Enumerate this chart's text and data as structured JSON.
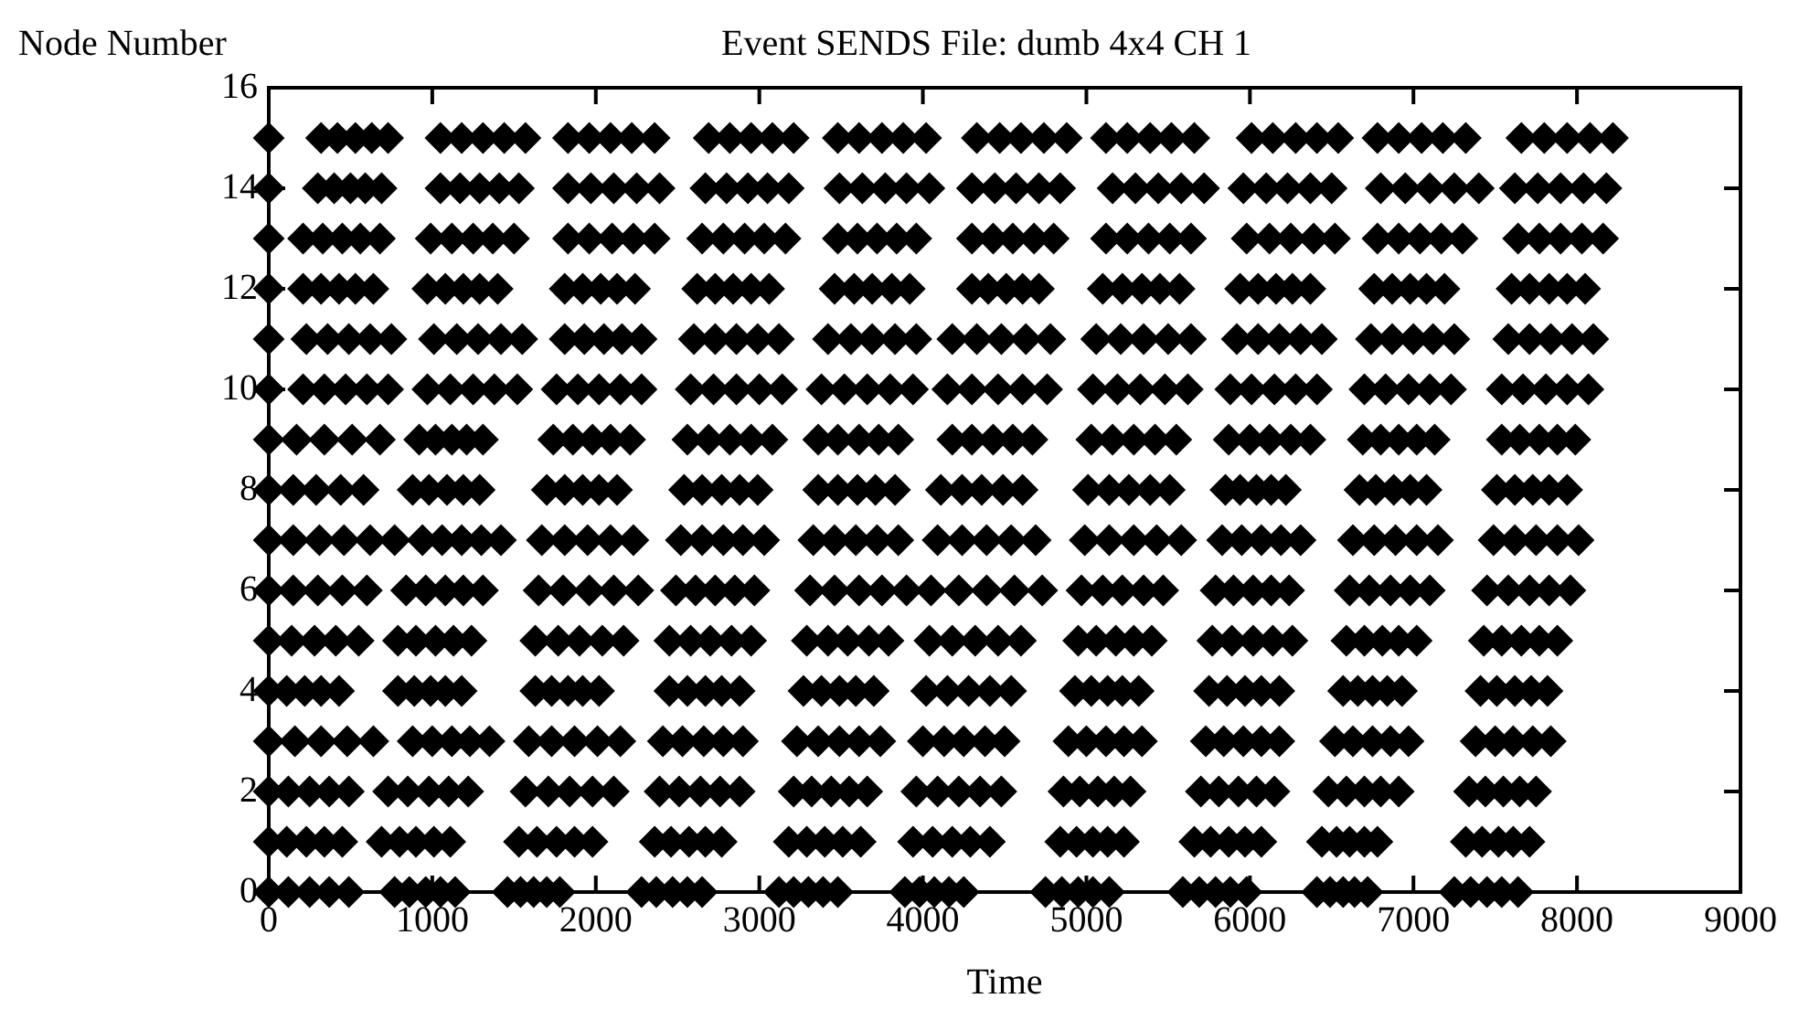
{
  "chart_data": {
    "type": "scatter",
    "title": "Event SENDS File: dumb 4x4 CH 1",
    "xlabel": "Time",
    "ylabel": "Node Number",
    "xlim": [
      0,
      9000
    ],
    "xticks": [
      0,
      1000,
      2000,
      3000,
      4000,
      5000,
      6000,
      7000,
      8000,
      9000
    ],
    "ylim": [
      0,
      16
    ],
    "yticks": [
      0,
      2,
      4,
      6,
      8,
      10,
      12,
      14,
      16
    ],
    "marker": "diamond",
    "series": [
      {
        "color": "#000000",
        "x": [
          0,
          320,
          420,
          530,
          630,
          730,
          1050,
          1180,
          1310,
          1440,
          1570,
          1830,
          1960,
          2090,
          2220,
          2360,
          2690,
          2820,
          2950,
          3080,
          3210,
          3480,
          3610,
          3750,
          3880,
          4020,
          4330,
          4470,
          4600,
          4740,
          4880,
          5120,
          5250,
          5390,
          5520,
          5660,
          6010,
          6140,
          6280,
          6410,
          6540,
          6780,
          6910,
          7050,
          7180,
          7320,
          7660,
          7800,
          7940,
          8080,
          8220
        ],
        "values": [
          15,
          15,
          15,
          15,
          15,
          15,
          15,
          15,
          15,
          15,
          15,
          15,
          15,
          15,
          15,
          15,
          15,
          15,
          15,
          15,
          15,
          15,
          15,
          15,
          15,
          15,
          15,
          15,
          15,
          15,
          15,
          15,
          15,
          15,
          15,
          15,
          15,
          15,
          15,
          15,
          15,
          15,
          15,
          15,
          15,
          15,
          15,
          15,
          15,
          15,
          15
        ]
      },
      {
        "color": "#000000",
        "x": [
          0,
          300,
          400,
          500,
          590,
          690,
          1050,
          1170,
          1290,
          1410,
          1530,
          1830,
          1970,
          2110,
          2250,
          2390,
          2670,
          2800,
          2930,
          3050,
          3180,
          3490,
          3630,
          3770,
          3900,
          4040,
          4300,
          4440,
          4570,
          4710,
          4840,
          5160,
          5300,
          5440,
          5580,
          5720,
          5960,
          6100,
          6230,
          6370,
          6500,
          6800,
          6950,
          7100,
          7250,
          7400,
          7620,
          7760,
          7900,
          8040,
          8180
        ],
        "values": [
          14,
          14,
          14,
          14,
          14,
          14,
          14,
          14,
          14,
          14,
          14,
          14,
          14,
          14,
          14,
          14,
          14,
          14,
          14,
          14,
          14,
          14,
          14,
          14,
          14,
          14,
          14,
          14,
          14,
          14,
          14,
          14,
          14,
          14,
          14,
          14,
          14,
          14,
          14,
          14,
          14,
          14,
          14,
          14,
          14,
          14,
          14,
          14,
          14,
          14,
          14
        ]
      },
      {
        "color": "#000000",
        "x": [
          0,
          210,
          330,
          450,
          560,
          680,
          990,
          1120,
          1250,
          1370,
          1500,
          1830,
          1960,
          2100,
          2230,
          2360,
          2650,
          2780,
          2910,
          3030,
          3160,
          3480,
          3600,
          3720,
          3840,
          3960,
          4300,
          4430,
          4550,
          4680,
          4800,
          5120,
          5250,
          5380,
          5510,
          5640,
          5980,
          6120,
          6250,
          6390,
          6520,
          6780,
          6910,
          7040,
          7170,
          7300,
          7640,
          7770,
          7900,
          8030,
          8160
        ],
        "values": [
          13,
          13,
          13,
          13,
          13,
          13,
          13,
          13,
          13,
          13,
          13,
          13,
          13,
          13,
          13,
          13,
          13,
          13,
          13,
          13,
          13,
          13,
          13,
          13,
          13,
          13,
          13,
          13,
          13,
          13,
          13,
          13,
          13,
          13,
          13,
          13,
          13,
          13,
          13,
          13,
          13,
          13,
          13,
          13,
          13,
          13,
          13,
          13,
          13,
          13,
          13
        ]
      },
      {
        "color": "#000000",
        "x": [
          0,
          210,
          320,
          430,
          530,
          640,
          970,
          1080,
          1190,
          1290,
          1400,
          1810,
          1920,
          2030,
          2130,
          2240,
          2620,
          2730,
          2840,
          2950,
          3060,
          3460,
          3580,
          3690,
          3810,
          3920,
          4300,
          4400,
          4510,
          4610,
          4710,
          5100,
          5220,
          5340,
          5450,
          5570,
          5940,
          6050,
          6160,
          6260,
          6370,
          6760,
          6870,
          6980,
          7080,
          7190,
          7600,
          7710,
          7830,
          7940,
          8050
        ],
        "values": [
          12,
          12,
          12,
          12,
          12,
          12,
          12,
          12,
          12,
          12,
          12,
          12,
          12,
          12,
          12,
          12,
          12,
          12,
          12,
          12,
          12,
          12,
          12,
          12,
          12,
          12,
          12,
          12,
          12,
          12,
          12,
          12,
          12,
          12,
          12,
          12,
          12,
          12,
          12,
          12,
          12,
          12,
          12,
          12,
          12,
          12,
          12,
          12,
          12,
          12,
          12
        ]
      },
      {
        "color": "#000000",
        "x": [
          0,
          230,
          360,
          490,
          620,
          750,
          1010,
          1150,
          1280,
          1420,
          1550,
          1810,
          1930,
          2050,
          2160,
          2280,
          2600,
          2730,
          2860,
          2990,
          3120,
          3420,
          3560,
          3690,
          3830,
          3960,
          4180,
          4330,
          4480,
          4630,
          4780,
          5060,
          5210,
          5350,
          5500,
          5640,
          5920,
          6050,
          6180,
          6310,
          6440,
          6740,
          6870,
          7000,
          7120,
          7250,
          7580,
          7710,
          7840,
          7970,
          8100
        ],
        "values": [
          11,
          11,
          11,
          11,
          11,
          11,
          11,
          11,
          11,
          11,
          11,
          11,
          11,
          11,
          11,
          11,
          11,
          11,
          11,
          11,
          11,
          11,
          11,
          11,
          11,
          11,
          11,
          11,
          11,
          11,
          11,
          11,
          11,
          11,
          11,
          11,
          11,
          11,
          11,
          11,
          11,
          11,
          11,
          11,
          11,
          11,
          11,
          11,
          11,
          11,
          11
        ]
      },
      {
        "color": "#000000",
        "x": [
          0,
          210,
          340,
          470,
          600,
          730,
          970,
          1110,
          1250,
          1380,
          1520,
          1760,
          1890,
          2020,
          2150,
          2280,
          2580,
          2720,
          2860,
          3000,
          3140,
          3380,
          3520,
          3660,
          3800,
          3940,
          4150,
          4300,
          4460,
          4610,
          4760,
          5040,
          5190,
          5330,
          5480,
          5620,
          5880,
          6010,
          6150,
          6280,
          6410,
          6700,
          6830,
          6970,
          7100,
          7230,
          7540,
          7670,
          7810,
          7940,
          8070
        ],
        "values": [
          10,
          10,
          10,
          10,
          10,
          10,
          10,
          10,
          10,
          10,
          10,
          10,
          10,
          10,
          10,
          10,
          10,
          10,
          10,
          10,
          10,
          10,
          10,
          10,
          10,
          10,
          10,
          10,
          10,
          10,
          10,
          10,
          10,
          10,
          10,
          10,
          10,
          10,
          10,
          10,
          10,
          10,
          10,
          10,
          10,
          10,
          10,
          10,
          10,
          10,
          10
        ]
      },
      {
        "color": "#000000",
        "x": [
          0,
          170,
          340,
          510,
          680,
          920,
          1020,
          1120,
          1210,
          1310,
          1740,
          1860,
          1980,
          2090,
          2210,
          2560,
          2690,
          2820,
          2950,
          3080,
          3360,
          3480,
          3610,
          3730,
          3850,
          4180,
          4300,
          4430,
          4550,
          4670,
          5030,
          5160,
          5290,
          5420,
          5550,
          5870,
          6000,
          6120,
          6250,
          6370,
          6690,
          6800,
          6910,
          7020,
          7130,
          7540,
          7650,
          7770,
          7880,
          7990
        ],
        "values": [
          9,
          9,
          9,
          9,
          9,
          9,
          9,
          9,
          9,
          9,
          9,
          9,
          9,
          9,
          9,
          9,
          9,
          9,
          9,
          9,
          9,
          9,
          9,
          9,
          9,
          9,
          9,
          9,
          9,
          9,
          9,
          9,
          9,
          9,
          9,
          9,
          9,
          9,
          9,
          9,
          9,
          9,
          9,
          9,
          9,
          9,
          9,
          9,
          9,
          9
        ]
      },
      {
        "color": "#000000",
        "x": [
          0,
          150,
          290,
          440,
          580,
          880,
          980,
          1090,
          1190,
          1290,
          1700,
          1810,
          1920,
          2020,
          2130,
          2540,
          2650,
          2770,
          2880,
          2990,
          3360,
          3480,
          3600,
          3710,
          3830,
          4110,
          4240,
          4360,
          4490,
          4610,
          5010,
          5140,
          5260,
          5390,
          5510,
          5850,
          5940,
          6040,
          6130,
          6220,
          6670,
          6770,
          6880,
          6980,
          7080,
          7510,
          7620,
          7730,
          7830,
          7940
        ],
        "values": [
          8,
          8,
          8,
          8,
          8,
          8,
          8,
          8,
          8,
          8,
          8,
          8,
          8,
          8,
          8,
          8,
          8,
          8,
          8,
          8,
          8,
          8,
          8,
          8,
          8,
          8,
          8,
          8,
          8,
          8,
          8,
          8,
          8,
          8,
          8,
          8,
          8,
          8,
          8,
          8,
          8,
          8,
          8,
          8,
          8,
          8,
          8,
          8,
          8,
          8
        ]
      },
      {
        "color": "#000000",
        "x": [
          0,
          150,
          310,
          460,
          620,
          770,
          940,
          1060,
          1180,
          1300,
          1420,
          1670,
          1810,
          1950,
          2090,
          2230,
          2520,
          2650,
          2780,
          2900,
          3030,
          3330,
          3460,
          3590,
          3720,
          3850,
          4090,
          4240,
          4390,
          4540,
          4690,
          4990,
          5140,
          5290,
          5430,
          5580,
          5830,
          5950,
          6070,
          6190,
          6310,
          6630,
          6760,
          6890,
          7020,
          7150,
          7490,
          7620,
          7750,
          7880,
          8010
        ],
        "values": [
          7,
          7,
          7,
          7,
          7,
          7,
          7,
          7,
          7,
          7,
          7,
          7,
          7,
          7,
          7,
          7,
          7,
          7,
          7,
          7,
          7,
          7,
          7,
          7,
          7,
          7,
          7,
          7,
          7,
          7,
          7,
          7,
          7,
          7,
          7,
          7,
          7,
          7,
          7,
          7,
          7,
          7,
          7,
          7,
          7,
          7,
          7,
          7,
          7,
          7,
          7
        ]
      },
      {
        "color": "#000000",
        "x": [
          0,
          150,
          300,
          450,
          600,
          840,
          960,
          1080,
          1190,
          1310,
          1650,
          1800,
          1960,
          2110,
          2260,
          2490,
          2610,
          2730,
          2850,
          2970,
          3310,
          3460,
          3610,
          3750,
          3900,
          4050,
          4220,
          4390,
          4560,
          4730,
          4970,
          5100,
          5220,
          5350,
          5470,
          5790,
          5900,
          6020,
          6130,
          6240,
          6610,
          6730,
          6860,
          6980,
          7100,
          7450,
          7580,
          7710,
          7830,
          7960
        ],
        "values": [
          6,
          6,
          6,
          6,
          6,
          6,
          6,
          6,
          6,
          6,
          6,
          6,
          6,
          6,
          6,
          6,
          6,
          6,
          6,
          6,
          6,
          6,
          6,
          6,
          6,
          6,
          6,
          6,
          6,
          6,
          6,
          6,
          6,
          6,
          6,
          6,
          6,
          6,
          6,
          6,
          6,
          6,
          6,
          6,
          6,
          6,
          6,
          6,
          6,
          6
        ]
      },
      {
        "color": "#000000",
        "x": [
          0,
          140,
          280,
          410,
          550,
          790,
          900,
          1020,
          1130,
          1240,
          1630,
          1770,
          1900,
          2040,
          2170,
          2450,
          2580,
          2700,
          2830,
          2950,
          3290,
          3420,
          3540,
          3670,
          3790,
          4040,
          4180,
          4320,
          4460,
          4600,
          4950,
          5060,
          5180,
          5290,
          5400,
          5770,
          5890,
          6020,
          6140,
          6260,
          6590,
          6700,
          6810,
          6910,
          7020,
          7430,
          7540,
          7660,
          7770,
          7880
        ],
        "values": [
          5,
          5,
          5,
          5,
          5,
          5,
          5,
          5,
          5,
          5,
          5,
          5,
          5,
          5,
          5,
          5,
          5,
          5,
          5,
          5,
          5,
          5,
          5,
          5,
          5,
          5,
          5,
          5,
          5,
          5,
          5,
          5,
          5,
          5,
          5,
          5,
          5,
          5,
          5,
          5,
          5,
          5,
          5,
          5,
          5,
          5,
          5,
          5,
          5,
          5
        ]
      },
      {
        "color": "#000000",
        "x": [
          0,
          110,
          220,
          320,
          430,
          790,
          890,
          990,
          1080,
          1180,
          1630,
          1730,
          1830,
          1920,
          2020,
          2450,
          2560,
          2670,
          2770,
          2880,
          3270,
          3380,
          3490,
          3590,
          3700,
          4020,
          4150,
          4280,
          4410,
          4540,
          4930,
          5030,
          5130,
          5220,
          5320,
          5750,
          5860,
          5970,
          6070,
          6180,
          6570,
          6660,
          6750,
          6840,
          6930,
          7410,
          7510,
          7620,
          7720,
          7820
        ],
        "values": [
          4,
          4,
          4,
          4,
          4,
          4,
          4,
          4,
          4,
          4,
          4,
          4,
          4,
          4,
          4,
          4,
          4,
          4,
          4,
          4,
          4,
          4,
          4,
          4,
          4,
          4,
          4,
          4,
          4,
          4,
          4,
          4,
          4,
          4,
          4,
          4,
          4,
          4,
          4,
          4,
          4,
          4,
          4,
          4,
          4,
          4,
          4,
          4,
          4,
          4
        ]
      },
      {
        "color": "#000000",
        "x": [
          0,
          160,
          320,
          480,
          640,
          880,
          1000,
          1120,
          1230,
          1350,
          1590,
          1730,
          1870,
          2010,
          2150,
          2410,
          2530,
          2660,
          2780,
          2900,
          3230,
          3360,
          3490,
          3610,
          3740,
          4000,
          4130,
          4250,
          4380,
          4500,
          4890,
          5000,
          5120,
          5230,
          5340,
          5730,
          5840,
          5960,
          6070,
          6180,
          6520,
          6630,
          6750,
          6860,
          6970,
          7380,
          7500,
          7610,
          7730,
          7840
        ],
        "values": [
          3,
          3,
          3,
          3,
          3,
          3,
          3,
          3,
          3,
          3,
          3,
          3,
          3,
          3,
          3,
          3,
          3,
          3,
          3,
          3,
          3,
          3,
          3,
          3,
          3,
          3,
          3,
          3,
          3,
          3,
          3,
          3,
          3,
          3,
          3,
          3,
          3,
          3,
          3,
          3,
          3,
          3,
          3,
          3,
          3,
          3,
          3,
          3,
          3,
          3
        ]
      },
      {
        "color": "#000000",
        "x": [
          0,
          120,
          250,
          370,
          490,
          730,
          850,
          980,
          1100,
          1220,
          1570,
          1710,
          1840,
          1980,
          2110,
          2390,
          2510,
          2640,
          2760,
          2880,
          3210,
          3320,
          3440,
          3550,
          3660,
          3960,
          4090,
          4220,
          4350,
          4480,
          4860,
          4960,
          5070,
          5170,
          5270,
          5700,
          5810,
          5930,
          6040,
          6150,
          6480,
          6590,
          6700,
          6800,
          6910,
          7340,
          7440,
          7550,
          7650,
          7750
        ],
        "values": [
          2,
          2,
          2,
          2,
          2,
          2,
          2,
          2,
          2,
          2,
          2,
          2,
          2,
          2,
          2,
          2,
          2,
          2,
          2,
          2,
          2,
          2,
          2,
          2,
          2,
          2,
          2,
          2,
          2,
          2,
          2,
          2,
          2,
          2,
          2,
          2,
          2,
          2,
          2,
          2,
          2,
          2,
          2,
          2,
          2,
          2,
          2,
          2,
          2,
          2
        ]
      },
      {
        "color": "#000000",
        "x": [
          0,
          110,
          230,
          340,
          450,
          690,
          800,
          900,
          1010,
          1110,
          1530,
          1640,
          1760,
          1870,
          1980,
          2360,
          2460,
          2570,
          2670,
          2770,
          3180,
          3290,
          3400,
          3510,
          3620,
          3940,
          4060,
          4180,
          4290,
          4410,
          4840,
          4940,
          5040,
          5130,
          5230,
          5660,
          5760,
          5870,
          5970,
          6070,
          6440,
          6530,
          6610,
          6700,
          6780,
          7320,
          7420,
          7520,
          7610,
          7710
        ],
        "values": [
          1,
          1,
          1,
          1,
          1,
          1,
          1,
          1,
          1,
          1,
          1,
          1,
          1,
          1,
          1,
          1,
          1,
          1,
          1,
          1,
          1,
          1,
          1,
          1,
          1,
          1,
          1,
          1,
          1,
          1,
          1,
          1,
          1,
          1,
          1,
          1,
          1,
          1,
          1,
          1,
          1,
          1,
          1,
          1,
          1,
          1,
          1,
          1,
          1,
          1
        ]
      },
      {
        "color": "#000000",
        "x": [
          0,
          120,
          250,
          370,
          490,
          770,
          860,
          960,
          1050,
          1140,
          1460,
          1540,
          1620,
          1700,
          1780,
          2280,
          2370,
          2470,
          2560,
          2650,
          3120,
          3210,
          3300,
          3390,
          3480,
          3890,
          3980,
          4070,
          4160,
          4250,
          4750,
          4850,
          4950,
          5040,
          5140,
          5590,
          5690,
          5790,
          5880,
          5980,
          6410,
          6490,
          6570,
          6640,
          6720,
          7250,
          7350,
          7450,
          7540,
          7640
        ],
        "values": [
          0,
          0,
          0,
          0,
          0,
          0,
          0,
          0,
          0,
          0,
          0,
          0,
          0,
          0,
          0,
          0,
          0,
          0,
          0,
          0,
          0,
          0,
          0,
          0,
          0,
          0,
          0,
          0,
          0,
          0,
          0,
          0,
          0,
          0,
          0,
          0,
          0,
          0,
          0,
          0,
          0,
          0,
          0,
          0,
          0,
          0,
          0,
          0,
          0,
          0
        ]
      }
    ]
  }
}
